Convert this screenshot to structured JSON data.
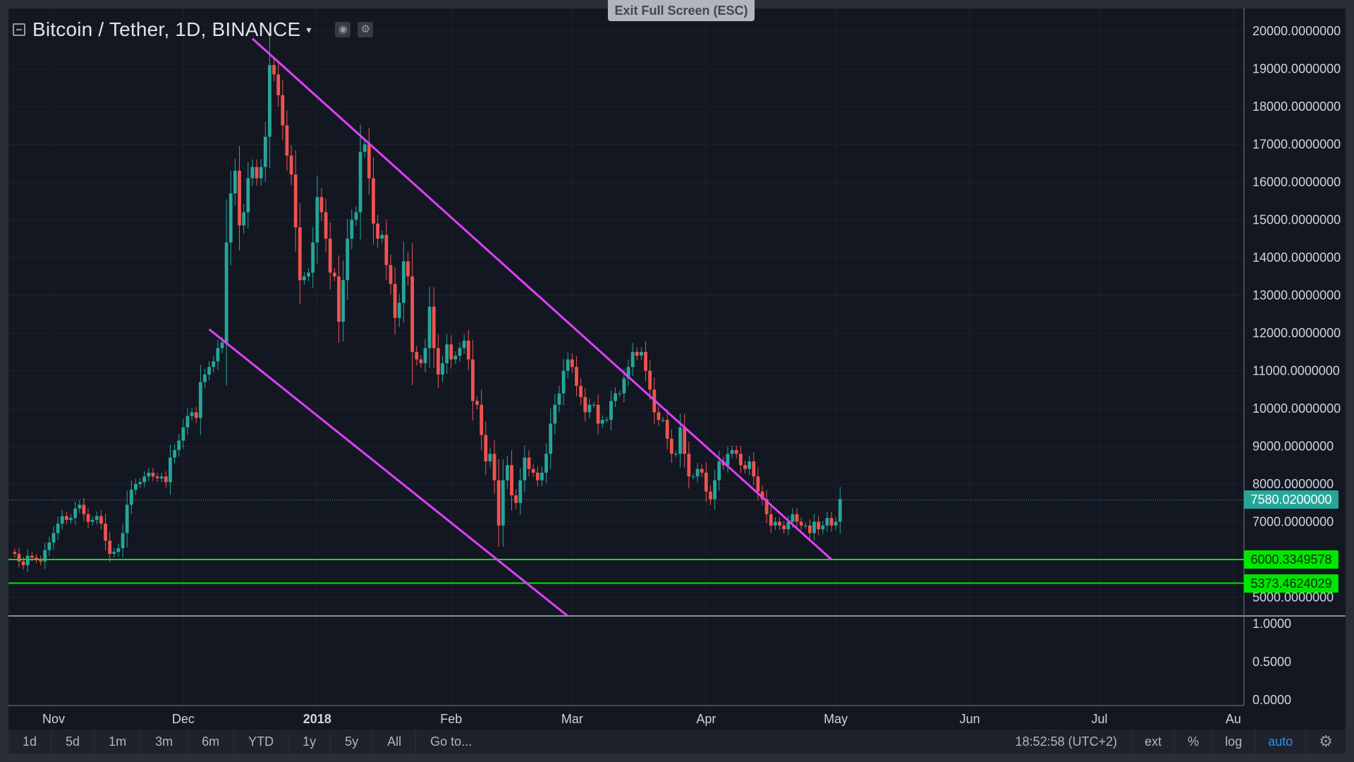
{
  "exit_fullscreen": "Exit Full Screen (ESC)",
  "header": {
    "title": "Bitcoin / Tether, 1D, BINANCE",
    "caret": "▾",
    "camera_icon": "camera-icon",
    "settings_icon": "gear-icon"
  },
  "colors": {
    "up": "#26a69a",
    "down": "#ef5350",
    "trendline": "#e040fb",
    "support": "#00e600",
    "last_price": "#26a69a",
    "background": "#131722",
    "grid": "#1e222d"
  },
  "chart_data": {
    "type": "candlestick",
    "title": "Bitcoin / Tether, 1D, BINANCE",
    "y_scale": "linear",
    "ylim": [
      4500,
      20300
    ],
    "y_ticks": [
      "20000.0000000",
      "19000.0000000",
      "18000.0000000",
      "17000.0000000",
      "16000.0000000",
      "15000.0000000",
      "14000.0000000",
      "13000.0000000",
      "12000.0000000",
      "11000.0000000",
      "10000.0000000",
      "9000.0000000",
      "8000.0000000",
      "7000.0000000",
      "5000.0000000"
    ],
    "x_ticks": [
      {
        "label": "Nov",
        "date": "2017-11-01"
      },
      {
        "label": "Dec",
        "date": "2017-12-01"
      },
      {
        "label": "2018",
        "date": "2018-01-01",
        "bold": true
      },
      {
        "label": "Feb",
        "date": "2018-02-01"
      },
      {
        "label": "Mar",
        "date": "2018-03-01"
      },
      {
        "label": "Apr",
        "date": "2018-04-01"
      },
      {
        "label": "May",
        "date": "2018-05-01"
      },
      {
        "label": "Jun",
        "date": "2018-06-01"
      },
      {
        "label": "Jul",
        "date": "2018-07-01"
      },
      {
        "label": "Au",
        "date": "2018-08-01"
      }
    ],
    "closes": [
      6150,
      5950,
      5850,
      6100,
      6050,
      6000,
      5950,
      6250,
      6450,
      6700,
      6950,
      7150,
      7050,
      7100,
      7350,
      7450,
      7200,
      7000,
      7050,
      7150,
      6950,
      6500,
      6150,
      6200,
      6300,
      6700,
      7450,
      7850,
      8000,
      8050,
      8200,
      8300,
      8200,
      8150,
      8200,
      8050,
      8700,
      8900,
      9150,
      9500,
      9800,
      9900,
      9750,
      10700,
      10900,
      11100,
      11250,
      11600,
      11750,
      14400,
      15700,
      16300,
      14850,
      15200,
      16100,
      16400,
      16100,
      16400,
      17200,
      19100,
      18850,
      18300,
      17500,
      16700,
      16200,
      14800,
      13400,
      13500,
      13600,
      14400,
      15600,
      15200,
      14500,
      13600,
      13500,
      12300,
      13400,
      14500,
      15000,
      15200,
      16800,
      17000,
      16100,
      14900,
      14500,
      14600,
      13800,
      13300,
      12400,
      12800,
      13900,
      13500,
      11500,
      11300,
      11200,
      11600,
      12700,
      11600,
      10900,
      11200,
      11700,
      11300,
      11400,
      11600,
      11800,
      11300,
      10200,
      10100,
      9300,
      8600,
      8800,
      8100,
      6900,
      8100,
      8500,
      7700,
      7500,
      8100,
      8700,
      8400,
      8300,
      8100,
      8300,
      8800,
      9600,
      10100,
      10400,
      11000,
      11300,
      11100,
      10600,
      10300,
      9900,
      10100,
      10100,
      9600,
      9700,
      9700,
      10200,
      10400,
      10400,
      10800,
      11100,
      11500,
      11400,
      11500,
      11000,
      10500,
      9900,
      9700,
      9700,
      9200,
      8800,
      8800,
      9500,
      8800,
      8200,
      8200,
      8400,
      8300,
      7800,
      7600,
      8100,
      8600,
      8500,
      8800,
      8900,
      8800,
      8500,
      8400,
      8600,
      8200,
      7800,
      7600,
      7200,
      6900,
      7000,
      6900,
      6800,
      7000,
      7200,
      7000,
      6900,
      6900,
      6700,
      7000,
      6800,
      6900,
      7100,
      6900,
      7000,
      7600
    ]
  },
  "levels": [
    {
      "label": "7580.0200000",
      "value": 7580.02
    },
    {
      "label": "6000.3349578",
      "value": 6000.3349578
    },
    {
      "label": "5373.4624029",
      "value": 5373.4624029
    }
  ],
  "trendlines": [
    {
      "from": {
        "date": "2017-12-17",
        "price": 19800
      },
      "to": {
        "date": "2018-04-30",
        "price": 6000
      }
    },
    {
      "from": {
        "date": "2017-12-07",
        "price": 12100
      },
      "to": {
        "date": "2018-02-28",
        "price": 4500
      }
    }
  ],
  "sub_pane": {
    "ticks": [
      "1.0000",
      "0.5000",
      "0.0000"
    ]
  },
  "bottom_bar": {
    "ranges": [
      "1d",
      "5d",
      "1m",
      "3m",
      "6m",
      "YTD",
      "1y",
      "5y",
      "All"
    ],
    "goto": "Go to...",
    "time": "18:52:58 (UTC+2)",
    "ext": "ext",
    "percent": "%",
    "log": "log",
    "auto": "auto",
    "settings_icon": "gear-icon"
  }
}
